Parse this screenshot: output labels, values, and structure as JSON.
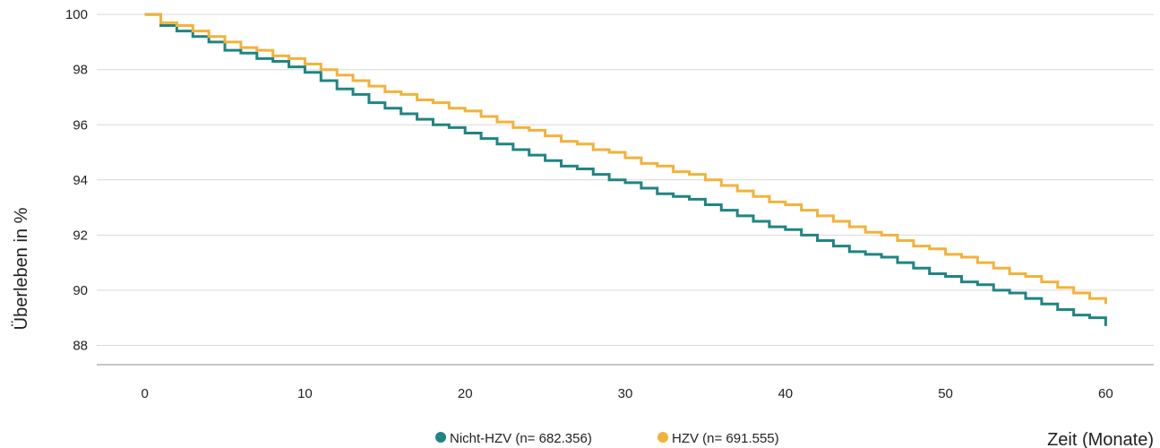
{
  "chart_data": {
    "type": "line",
    "step": true,
    "title": "",
    "xlabel": "Zeit (Monate)",
    "ylabel": "Überleben in %",
    "xlim": [
      -3,
      63
    ],
    "ylim": [
      87.3,
      100.2
    ],
    "xticks": [
      0,
      10,
      20,
      30,
      40,
      50,
      60
    ],
    "yticks": [
      88,
      90,
      92,
      94,
      96,
      98,
      100
    ],
    "grid": "horizontal",
    "legend_position": "bottom-center",
    "series": [
      {
        "name": "Nicht-HZV (n= 682.356)",
        "color": "#1f8582",
        "x": [
          0,
          1,
          2,
          3,
          4,
          5,
          6,
          7,
          8,
          9,
          10,
          11,
          12,
          13,
          14,
          15,
          16,
          17,
          18,
          19,
          20,
          21,
          22,
          23,
          24,
          25,
          26,
          27,
          28,
          29,
          30,
          31,
          32,
          33,
          34,
          35,
          36,
          37,
          38,
          39,
          40,
          41,
          42,
          43,
          44,
          45,
          46,
          47,
          48,
          49,
          50,
          51,
          52,
          53,
          54,
          55,
          56,
          57,
          58,
          59,
          60
        ],
        "y": [
          100,
          99.6,
          99.4,
          99.2,
          99.0,
          98.7,
          98.6,
          98.4,
          98.3,
          98.1,
          97.9,
          97.6,
          97.3,
          97.1,
          96.8,
          96.6,
          96.4,
          96.2,
          96.0,
          95.9,
          95.7,
          95.5,
          95.3,
          95.1,
          94.9,
          94.7,
          94.5,
          94.4,
          94.2,
          94.0,
          93.9,
          93.7,
          93.5,
          93.4,
          93.3,
          93.1,
          92.9,
          92.7,
          92.5,
          92.3,
          92.2,
          92.0,
          91.8,
          91.6,
          91.4,
          91.3,
          91.2,
          91.0,
          90.8,
          90.6,
          90.5,
          90.3,
          90.2,
          90.0,
          89.9,
          89.7,
          89.5,
          89.3,
          89.1,
          89.0,
          88.7
        ]
      },
      {
        "name": "HZV (n= 691.555)",
        "color": "#f2b23a",
        "x": [
          0,
          1,
          2,
          3,
          4,
          5,
          6,
          7,
          8,
          9,
          10,
          11,
          12,
          13,
          14,
          15,
          16,
          17,
          18,
          19,
          20,
          21,
          22,
          23,
          24,
          25,
          26,
          27,
          28,
          29,
          30,
          31,
          32,
          33,
          34,
          35,
          36,
          37,
          38,
          39,
          40,
          41,
          42,
          43,
          44,
          45,
          46,
          47,
          48,
          49,
          50,
          51,
          52,
          53,
          54,
          55,
          56,
          57,
          58,
          59,
          60
        ],
        "y": [
          100,
          99.7,
          99.6,
          99.4,
          99.2,
          99.0,
          98.8,
          98.7,
          98.5,
          98.4,
          98.2,
          98.0,
          97.8,
          97.6,
          97.4,
          97.2,
          97.1,
          96.9,
          96.8,
          96.6,
          96.5,
          96.3,
          96.1,
          95.9,
          95.8,
          95.6,
          95.4,
          95.3,
          95.1,
          95.0,
          94.8,
          94.6,
          94.5,
          94.3,
          94.2,
          94.0,
          93.8,
          93.6,
          93.4,
          93.2,
          93.1,
          92.9,
          92.7,
          92.5,
          92.3,
          92.1,
          92.0,
          91.8,
          91.6,
          91.5,
          91.3,
          91.2,
          91.0,
          90.8,
          90.6,
          90.5,
          90.3,
          90.1,
          89.9,
          89.7,
          89.5
        ]
      }
    ]
  }
}
